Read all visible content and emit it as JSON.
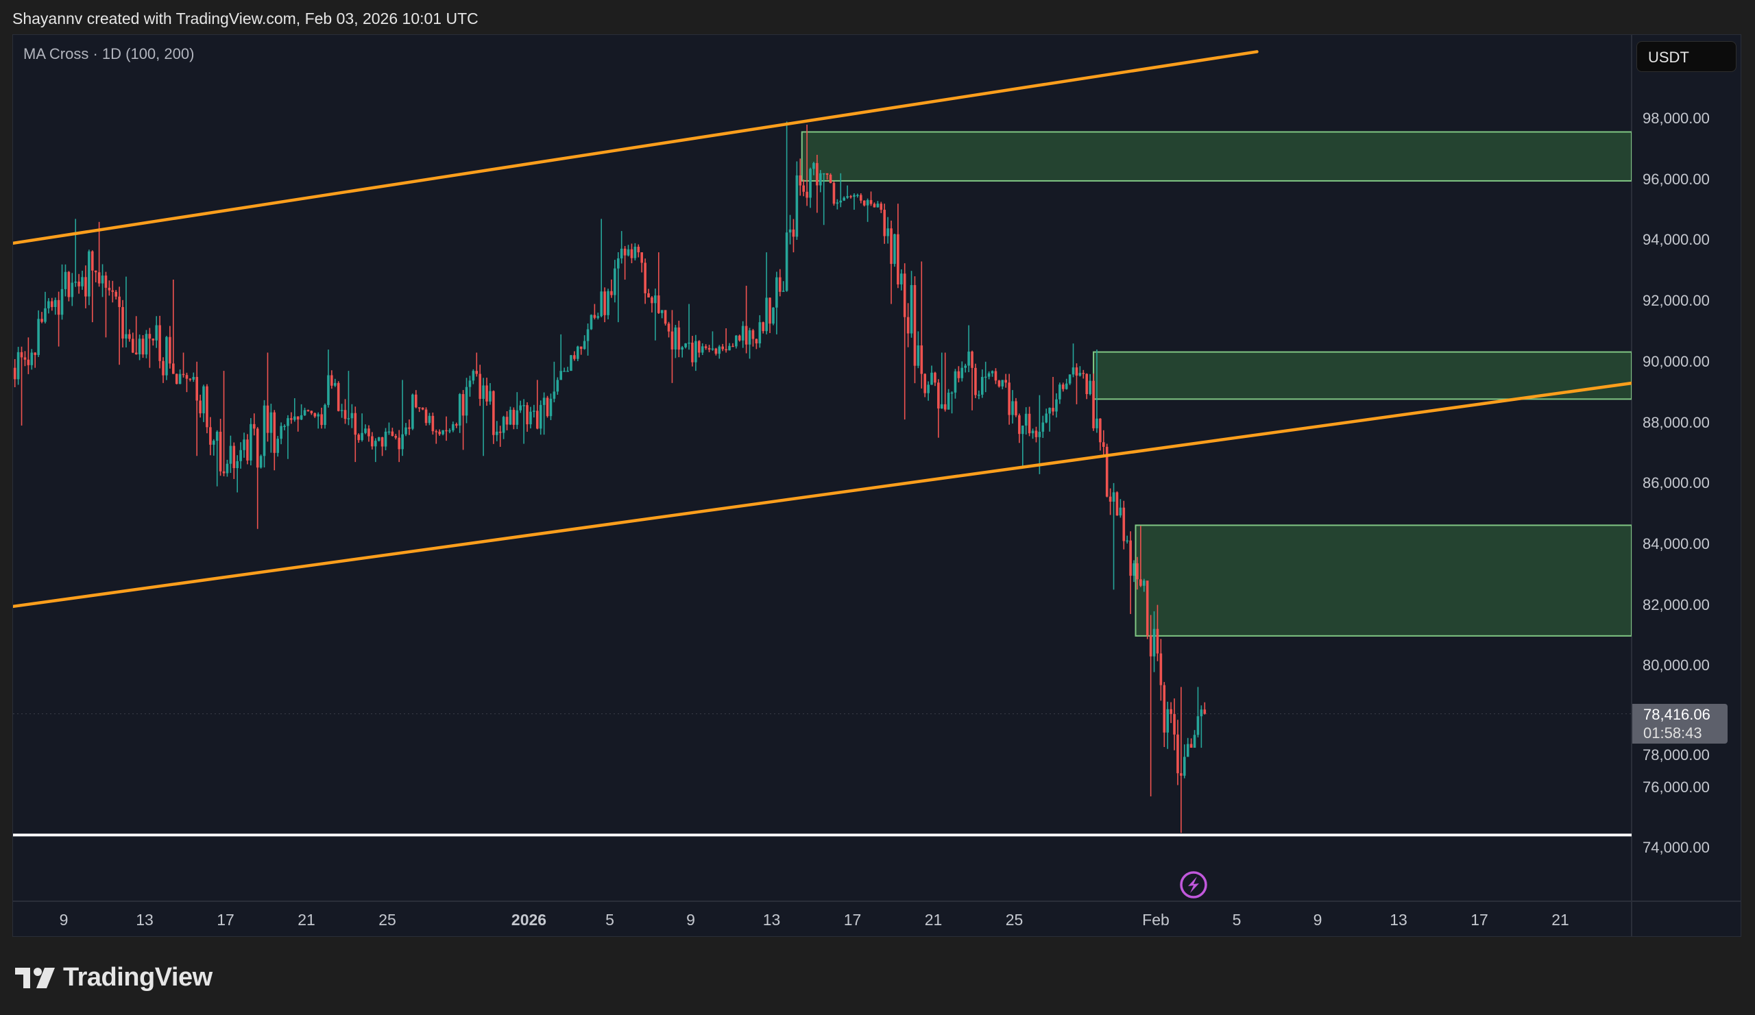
{
  "header": {
    "credit": "Shayannv created with TradingView.com, Feb 03, 2026 10:01 UTC"
  },
  "legend": {
    "indicator": "MA Cross · 1D (100, 200)"
  },
  "price_axis": {
    "currency": "USDT"
  },
  "last_price": {
    "value": "78,416.06",
    "countdown": "01:58:43"
  },
  "logo": {
    "text": "TradingView"
  },
  "colors": {
    "up": "#26a69a",
    "down": "#ef5350",
    "channel": "#ff9f1c",
    "support": "#ffffff",
    "zone_fill": "rgba(76,175,80,0.28)",
    "zone_border": "#81c784",
    "event": "#c158dc"
  },
  "chart_data": {
    "type": "candlestick",
    "title": "",
    "ylim": [
      72500,
      101000
    ],
    "grid": false,
    "y_ticks": [
      "98,000.00",
      "96,000.00",
      "94,000.00",
      "92,000.00",
      "90,000.00",
      "88,000.00",
      "86,000.00",
      "84,000.00",
      "82,000.00",
      "80,000.00",
      "78,000.00",
      "76,000.00",
      "74,000.00"
    ],
    "x_ticks": [
      {
        "label": "9",
        "date": "2025-12-09"
      },
      {
        "label": "13",
        "date": "2025-12-13"
      },
      {
        "label": "17",
        "date": "2025-12-17"
      },
      {
        "label": "21",
        "date": "2025-12-21"
      },
      {
        "label": "25",
        "date": "2025-12-25"
      },
      {
        "label": "2026",
        "date": "2026-01-01",
        "bold": true
      },
      {
        "label": "5",
        "date": "2026-01-05"
      },
      {
        "label": "9",
        "date": "2026-01-09"
      },
      {
        "label": "13",
        "date": "2026-01-13"
      },
      {
        "label": "17",
        "date": "2026-01-17"
      },
      {
        "label": "21",
        "date": "2026-01-21"
      },
      {
        "label": "25",
        "date": "2026-01-25"
      },
      {
        "label": "Feb",
        "date": "2026-02-01"
      },
      {
        "label": "5",
        "date": "2026-02-05"
      },
      {
        "label": "9",
        "date": "2026-02-09"
      },
      {
        "label": "13",
        "date": "2026-02-13"
      },
      {
        "label": "17",
        "date": "2026-02-17"
      },
      {
        "label": "21",
        "date": "2026-02-21"
      }
    ],
    "first_open": 89800,
    "daily_ohlc_columns": [
      "date",
      "high",
      "low",
      "close"
    ],
    "daily_ohlc": [
      [
        "2025-12-07",
        90800,
        87900,
        90300
      ],
      [
        "2025-12-08",
        92300,
        89800,
        91800
      ],
      [
        "2025-12-09",
        93200,
        90500,
        92600
      ],
      [
        "2025-12-10",
        94700,
        91300,
        93000
      ],
      [
        "2025-12-11",
        94600,
        90800,
        92300
      ],
      [
        "2025-12-12",
        92800,
        89900,
        90300
      ],
      [
        "2025-12-13",
        91500,
        89800,
        90700
      ],
      [
        "2025-12-14",
        92700,
        89300,
        89600
      ],
      [
        "2025-12-15",
        90300,
        89000,
        89500
      ],
      [
        "2025-12-16",
        90000,
        86900,
        87400
      ],
      [
        "2025-12-17",
        89700,
        85900,
        86500
      ],
      [
        "2025-12-18",
        88300,
        85700,
        87800
      ],
      [
        "2025-12-19",
        90300,
        84500,
        87000
      ],
      [
        "2025-12-20",
        88800,
        86800,
        88200
      ],
      [
        "2025-12-21",
        88600,
        87700,
        88200
      ],
      [
        "2025-12-22",
        90400,
        87800,
        89300
      ],
      [
        "2025-12-23",
        89700,
        86700,
        87600
      ],
      [
        "2025-12-24",
        88300,
        86700,
        87400
      ],
      [
        "2025-12-25",
        88000,
        86900,
        87500
      ],
      [
        "2025-12-26",
        89400,
        86700,
        88500
      ],
      [
        "2025-12-27",
        88500,
        87300,
        87700
      ],
      [
        "2025-12-28",
        88200,
        87400,
        87900
      ],
      [
        "2025-12-29",
        90300,
        87100,
        89600
      ],
      [
        "2025-12-30",
        89900,
        86900,
        87700
      ],
      [
        "2025-12-31",
        89000,
        87200,
        88400
      ],
      [
        "2026-01-01",
        89400,
        87300,
        87800
      ],
      [
        "2026-01-02",
        90000,
        87600,
        89400
      ],
      [
        "2026-01-03",
        90900,
        89700,
        90500
      ],
      [
        "2026-01-04",
        91900,
        90200,
        91500
      ],
      [
        "2026-01-05",
        94700,
        91300,
        93400
      ],
      [
        "2026-01-06",
        94300,
        92700,
        93600
      ],
      [
        "2026-01-07",
        93600,
        90700,
        91600
      ],
      [
        "2026-01-08",
        91700,
        89300,
        90400
      ],
      [
        "2026-01-09",
        91900,
        89700,
        90300
      ],
      [
        "2026-01-10",
        91000,
        90100,
        90500
      ],
      [
        "2026-01-11",
        91100,
        90300,
        90700
      ],
      [
        "2026-01-12",
        92500,
        90100,
        91300
      ],
      [
        "2026-01-13",
        93600,
        90900,
        92300
      ],
      [
        "2026-01-14",
        97900,
        92300,
        95800
      ],
      [
        "2026-01-15",
        97800,
        94900,
        96200
      ],
      [
        "2026-01-16",
        96200,
        94500,
        95300
      ],
      [
        "2026-01-17",
        95800,
        95000,
        95300
      ],
      [
        "2026-01-18",
        95600,
        94600,
        95000
      ],
      [
        "2026-01-19",
        95200,
        91900,
        92900
      ],
      [
        "2026-01-20",
        93300,
        88100,
        89600
      ],
      [
        "2026-01-21",
        90300,
        87500,
        88600
      ],
      [
        "2026-01-22",
        90300,
        88300,
        89800
      ],
      [
        "2026-01-23",
        91200,
        88400,
        89500
      ],
      [
        "2026-01-24",
        90000,
        89000,
        89400
      ],
      [
        "2026-01-25",
        89600,
        86500,
        87900
      ],
      [
        "2026-01-26",
        88900,
        86300,
        88000
      ],
      [
        "2026-01-27",
        89500,
        87700,
        89100
      ],
      [
        "2026-01-28",
        90600,
        88600,
        89600
      ],
      [
        "2026-01-29",
        90400,
        86900,
        87200
      ],
      [
        "2026-01-30",
        87300,
        82500,
        84100
      ],
      [
        "2026-01-31",
        84600,
        81700,
        82800
      ],
      [
        "2026-02-01",
        82000,
        75700,
        77800
      ],
      [
        "2026-02-02",
        79300,
        74500,
        77000
      ],
      [
        "2026-02-03",
        79300,
        77300,
        78416.06
      ]
    ],
    "channel_lines": [
      {
        "name": "",
        "from": [
          "2025-12-06T12:00",
          93900
        ],
        "to": [
          "2026-02-06",
          100200
        ]
      },
      {
        "name": "",
        "from": [
          "2025-12-06T12:00",
          81950
        ],
        "to": [
          "2026-02-24T14:00",
          89300
        ]
      }
    ],
    "support_line": 74430,
    "zones": [
      {
        "from": "2026-01-14T12:00",
        "top": 97560,
        "bottom": 95950
      },
      {
        "from": "2026-01-28T22:00",
        "top": 90320,
        "bottom": 88770
      },
      {
        "from": "2026-01-31T00:00",
        "top": 84620,
        "bottom": 80980
      }
    ],
    "event_marker": {
      "date": "2026-02-03",
      "icon": "lightning-icon"
    }
  }
}
